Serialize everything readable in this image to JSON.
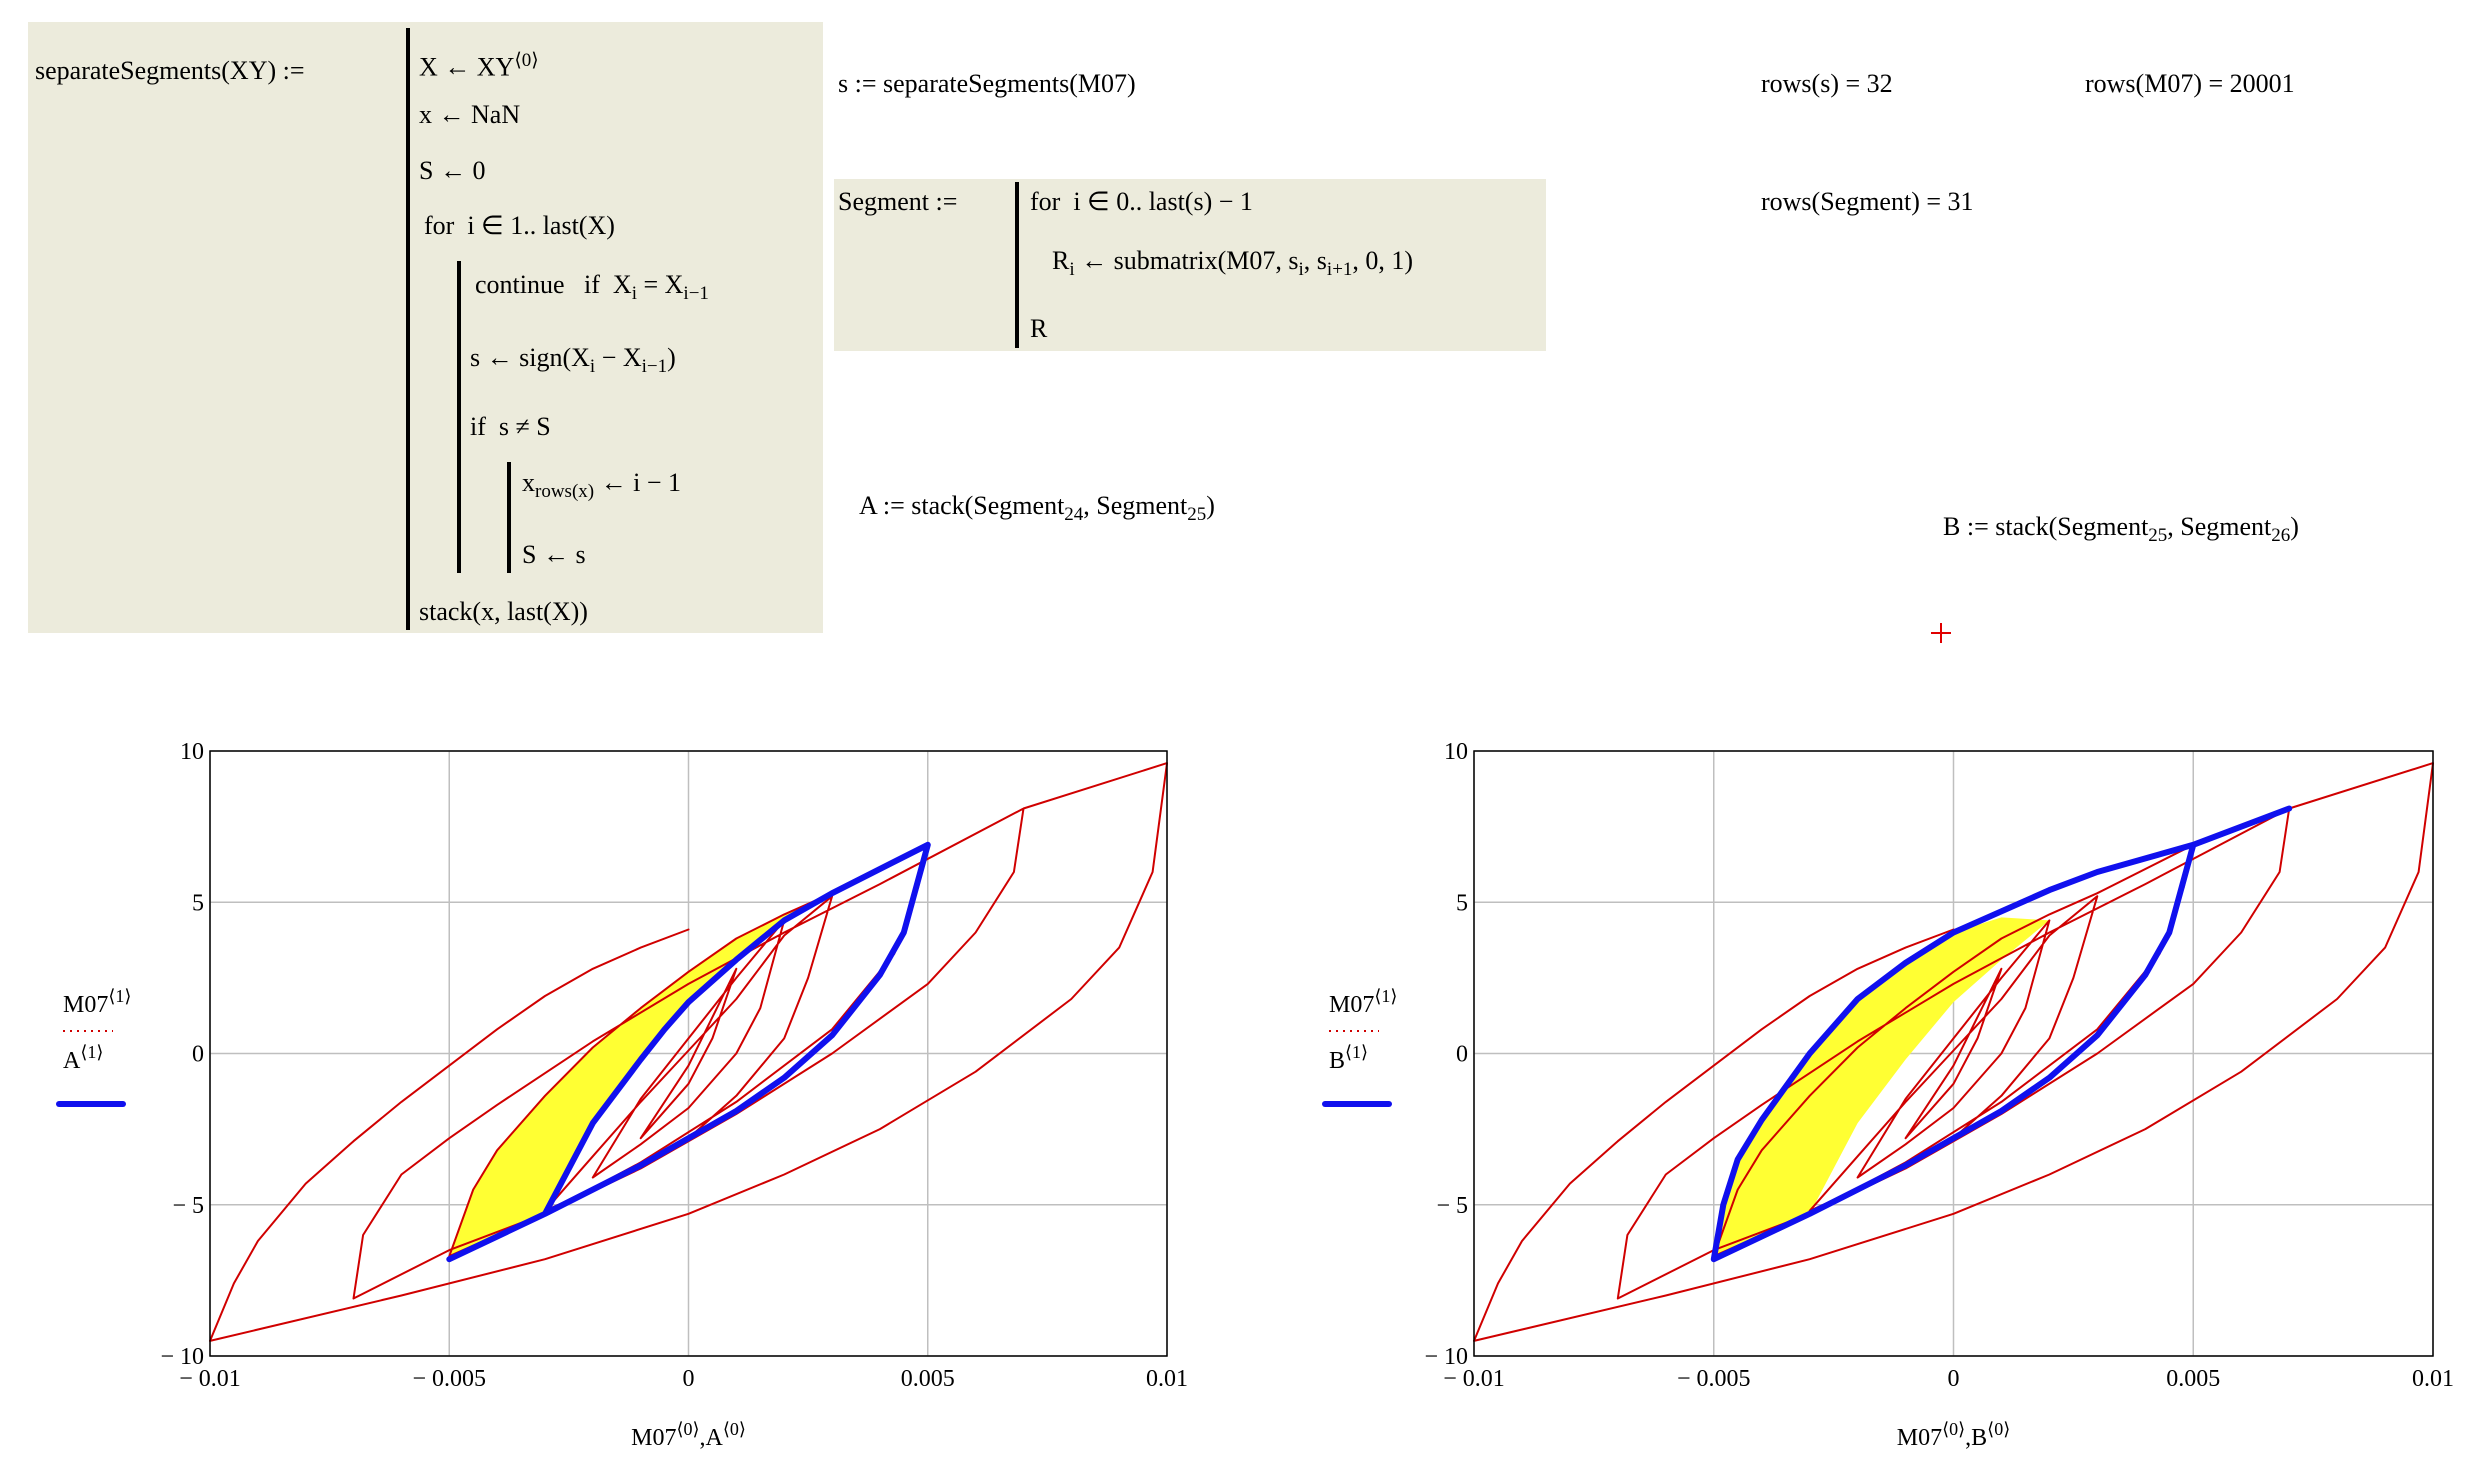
{
  "worksheet": {
    "function": {
      "head": [
        "separateSegments(XY) :="
      ],
      "lines": [
        [
          "X ← XY",
          {
            "sup": "⟨0⟩"
          }
        ],
        [
          "x ← NaN"
        ],
        [
          "S ← 0"
        ],
        [
          "for  i ∈ 1.. last(X)"
        ],
        [
          "continue   if  X",
          {
            "sub": "i"
          },
          " = X",
          {
            "sub": "i−1"
          }
        ],
        [
          "s ← sign(X",
          {
            "sub": "i"
          },
          " − X",
          {
            "sub": "i−1"
          },
          ")"
        ],
        [
          "if  s ≠ S"
        ],
        [
          "x",
          {
            "sub": "rows(x)"
          },
          " ← i − 1"
        ],
        [
          "S ← s"
        ],
        [
          "stack(x, last(X))"
        ]
      ]
    },
    "s_def": [
      "s := separateSegments(M07)"
    ],
    "segment_def": {
      "head": [
        "Segment :="
      ],
      "lines": [
        [
          "for  i ∈ 0.. last(s) − 1"
        ],
        [
          "R",
          {
            "sub": "i"
          },
          " ← submatrix(M07, s",
          {
            "sub": "i"
          },
          ", s",
          {
            "sub": "i+1"
          },
          ", 0, 1)"
        ],
        [
          "R"
        ]
      ]
    },
    "a_def": [
      "A := stack(Segment",
      {
        "sub": "24"
      },
      ", Segment",
      {
        "sub": "25"
      },
      ")"
    ],
    "b_def": [
      "B := stack(Segment",
      {
        "sub": "25"
      },
      ", Segment",
      {
        "sub": "26"
      },
      ")"
    ],
    "results": [
      {
        "expr": "rows(s) =",
        "value": 32
      },
      {
        "expr": "rows(M07) =",
        "value": 20001
      },
      {
        "expr": "rows(Segment) =",
        "value": 31
      }
    ]
  },
  "chart_data": [
    {
      "type": "line",
      "grid": true,
      "xlim": [
        -0.01,
        0.01
      ],
      "xticks": [
        {
          "value": -0.01,
          "label": "− 0.01"
        },
        {
          "value": -0.005,
          "label": "− 0.005"
        },
        0,
        0.005,
        0.01
      ],
      "ylim": [
        -10,
        10
      ],
      "yticks": [
        {
          "value": -10,
          "label": "− 10"
        },
        {
          "value": -5,
          "label": "− 5"
        },
        0,
        5,
        10
      ],
      "xlabel_sup": "⟨0⟩",
      "ylabel_sup": "⟨1⟩",
      "xlabel_sep": ",",
      "series": [
        {
          "name": "M07",
          "color": "#d00000",
          "x": [
            -0.01,
            -0.0095,
            -0.009,
            -0.008,
            -0.007,
            -0.006,
            -0.005,
            -0.004,
            -0.003,
            -0.002,
            -0.001,
            0,
            null,
            0.01,
            0.0097,
            0.009,
            0.008,
            0.006,
            0.004,
            0.002,
            0,
            -0.003,
            -0.006,
            -0.01,
            null,
            -0.007,
            -0.0068,
            -0.006,
            -0.005,
            -0.004,
            -0.002,
            0,
            0.002,
            0.004,
            0.007,
            0.01,
            null,
            0.007,
            0.0068,
            0.006,
            0.005,
            0.003,
            0.001,
            -0.001,
            -0.003,
            -0.005,
            -0.007,
            null,
            -0.005,
            -0.0045,
            -0.004,
            -0.003,
            -0.002,
            -0.001,
            0,
            0.001,
            0.002,
            0.003,
            0.005,
            null,
            0.005,
            0.0048,
            0.0043,
            0.003,
            0.001,
            -0.001,
            -0.003,
            -0.005,
            null,
            -0.003,
            -0.002,
            -0.001,
            0,
            0.001,
            0.002,
            0.003,
            0.0025,
            0.002,
            0.001,
            0,
            -0.001,
            -0.002,
            -0.003,
            null,
            -0.002,
            -0.001,
            0,
            0.001,
            0.002,
            0.0015,
            0.001,
            0,
            -0.001,
            -0.002,
            null,
            -0.001,
            0,
            0.001,
            0.0005,
            0,
            -0.001
          ],
          "values": [
            -9.5,
            -7.6,
            -6.2,
            -4.3,
            -2.9,
            -1.6,
            -0.4,
            0.8,
            1.9,
            2.8,
            3.5,
            4.1,
            null,
            9.6,
            6,
            3.5,
            1.8,
            -0.6,
            -2.5,
            -4,
            -5.3,
            -6.8,
            -8,
            -9.5,
            null,
            -8.1,
            -6,
            -4,
            -2.8,
            -1.7,
            0.4,
            2.3,
            4,
            5.6,
            8.1,
            9.6,
            null,
            8.1,
            6,
            4,
            2.3,
            0,
            -2,
            -3.8,
            -5.3,
            -6.5,
            -8.1,
            null,
            -6.7,
            -4.5,
            -3.2,
            -1.4,
            0.2,
            1.5,
            2.7,
            3.8,
            4.6,
            5.3,
            6.9,
            null,
            6.9,
            5.5,
            3.3,
            0.8,
            -1.6,
            -3.6,
            -5.3,
            -6.7,
            null,
            -5.2,
            -3.4,
            -1.6,
            0.1,
            1.8,
            3.9,
            5.2,
            2.5,
            0.5,
            -1.4,
            -2.8,
            -3.8,
            -4.5,
            -5.2,
            null,
            -4.1,
            -1.5,
            0.5,
            2.5,
            4.4,
            1.5,
            0,
            -1.8,
            -3,
            -4.1,
            null,
            -2.8,
            -0.4,
            2.8,
            0.5,
            -1,
            -2.8
          ]
        },
        {
          "name": "A",
          "color": "#1010ee",
          "x": [
            -0.005,
            -0.003,
            -0.001,
            0.001,
            0.002,
            0.003,
            0.004,
            0.0045,
            0.005,
            0.003,
            0.002,
            0.001,
            0,
            -0.0005,
            -0.001,
            -0.002,
            -0.003
          ],
          "values": [
            -6.8,
            -5.3,
            -3.7,
            -1.9,
            -0.8,
            0.6,
            2.6,
            4,
            6.9,
            5.3,
            4.4,
            3.1,
            1.7,
            0.8,
            -0.2,
            -2.3,
            -5.3
          ]
        }
      ],
      "fill": {
        "color": "#ffff33",
        "x": [
          -0.005,
          -0.0045,
          -0.004,
          -0.003,
          -0.002,
          -0.001,
          0,
          0.001,
          0.002,
          0.003,
          0.002,
          0.001,
          0,
          -0.0005,
          -0.001,
          -0.002,
          -0.003,
          -0.005
        ],
        "y": [
          -6.7,
          -4.5,
          -3.2,
          -1.4,
          0.2,
          1.5,
          2.7,
          3.8,
          4.6,
          5.3,
          4.4,
          3.1,
          1.7,
          0.8,
          -0.2,
          -2.3,
          -5.3,
          -6.7
        ]
      }
    },
    {
      "type": "line",
      "grid": true,
      "xlim": [
        -0.01,
        0.01
      ],
      "xticks": [
        {
          "value": -0.01,
          "label": "− 0.01"
        },
        {
          "value": -0.005,
          "label": "− 0.005"
        },
        0,
        0.005,
        0.01
      ],
      "ylim": [
        -10,
        10
      ],
      "yticks": [
        {
          "value": -10,
          "label": "− 10"
        },
        {
          "value": -5,
          "label": "− 5"
        },
        0,
        5,
        10
      ],
      "xlabel_sup": "⟨0⟩",
      "ylabel_sup": "⟨1⟩",
      "xlabel_sep": ",",
      "series": [
        {
          "name": "M07",
          "color": "#d00000",
          "x": [
            -0.01,
            -0.0095,
            -0.009,
            -0.008,
            -0.007,
            -0.006,
            -0.005,
            -0.004,
            -0.003,
            -0.002,
            -0.001,
            0,
            null,
            0.01,
            0.0097,
            0.009,
            0.008,
            0.006,
            0.004,
            0.002,
            0,
            -0.003,
            -0.006,
            -0.01,
            null,
            -0.007,
            -0.0068,
            -0.006,
            -0.005,
            -0.004,
            -0.002,
            0,
            0.002,
            0.004,
            0.007,
            0.01,
            null,
            0.007,
            0.0068,
            0.006,
            0.005,
            0.003,
            0.001,
            -0.001,
            -0.003,
            -0.005,
            -0.007,
            null,
            -0.005,
            -0.0045,
            -0.004,
            -0.003,
            -0.002,
            -0.001,
            0,
            0.001,
            0.002,
            0.003,
            0.005,
            null,
            0.005,
            0.0048,
            0.0043,
            0.003,
            0.001,
            -0.001,
            -0.003,
            -0.005,
            null,
            -0.003,
            -0.002,
            -0.001,
            0,
            0.001,
            0.002,
            0.003,
            0.0025,
            0.002,
            0.001,
            0,
            -0.001,
            -0.002,
            -0.003,
            null,
            -0.002,
            -0.001,
            0,
            0.001,
            0.002,
            0.0015,
            0.001,
            0,
            -0.001,
            -0.002,
            null,
            -0.001,
            0,
            0.001,
            0.0005,
            0,
            -0.001
          ],
          "values": [
            -9.5,
            -7.6,
            -6.2,
            -4.3,
            -2.9,
            -1.6,
            -0.4,
            0.8,
            1.9,
            2.8,
            3.5,
            4.1,
            null,
            9.6,
            6,
            3.5,
            1.8,
            -0.6,
            -2.5,
            -4,
            -5.3,
            -6.8,
            -8,
            -9.5,
            null,
            -8.1,
            -6,
            -4,
            -2.8,
            -1.7,
            0.4,
            2.3,
            4,
            5.6,
            8.1,
            9.6,
            null,
            8.1,
            6,
            4,
            2.3,
            0,
            -2,
            -3.8,
            -5.3,
            -6.5,
            -8.1,
            null,
            -6.7,
            -4.5,
            -3.2,
            -1.4,
            0.2,
            1.5,
            2.7,
            3.8,
            4.6,
            5.3,
            6.9,
            null,
            6.9,
            5.5,
            3.3,
            0.8,
            -1.6,
            -3.6,
            -5.3,
            -6.7,
            null,
            -5.2,
            -3.4,
            -1.6,
            0.1,
            1.8,
            3.9,
            5.2,
            2.5,
            0.5,
            -1.4,
            -2.8,
            -3.8,
            -4.5,
            -5.2,
            null,
            -4.1,
            -1.5,
            0.5,
            2.5,
            4.4,
            1.5,
            0,
            -1.8,
            -3,
            -4.1,
            null,
            -2.8,
            -0.4,
            2.8,
            0.5,
            -1,
            -2.8
          ]
        },
        {
          "name": "B",
          "color": "#1010ee",
          "x": [
            0.005,
            0.0045,
            0.004,
            0.003,
            0.002,
            0.001,
            -0.001,
            -0.003,
            -0.005,
            -0.0048,
            -0.0045,
            -0.004,
            -0.003,
            -0.002,
            -0.001,
            0,
            0.002,
            0.003,
            0.005,
            0.007
          ],
          "values": [
            6.9,
            4,
            2.6,
            0.6,
            -0.8,
            -1.9,
            -3.7,
            -5.3,
            -6.8,
            -5,
            -3.5,
            -2.2,
            0,
            1.8,
            3,
            4,
            5.4,
            6,
            6.9,
            8.1
          ]
        }
      ],
      "fill": {
        "color": "#ffff33",
        "x": [
          -0.005,
          -0.0048,
          -0.0045,
          -0.004,
          -0.003,
          -0.002,
          -0.001,
          0,
          0.001,
          0.002,
          0.001,
          0,
          -0.001,
          -0.002,
          -0.003,
          -0.005
        ],
        "y": [
          -6.8,
          -5,
          -3.5,
          -2.2,
          0,
          1.8,
          3,
          4,
          4.5,
          4.4,
          3.1,
          1.7,
          -0.2,
          -2.3,
          -5.3,
          -6.8
        ]
      }
    }
  ]
}
